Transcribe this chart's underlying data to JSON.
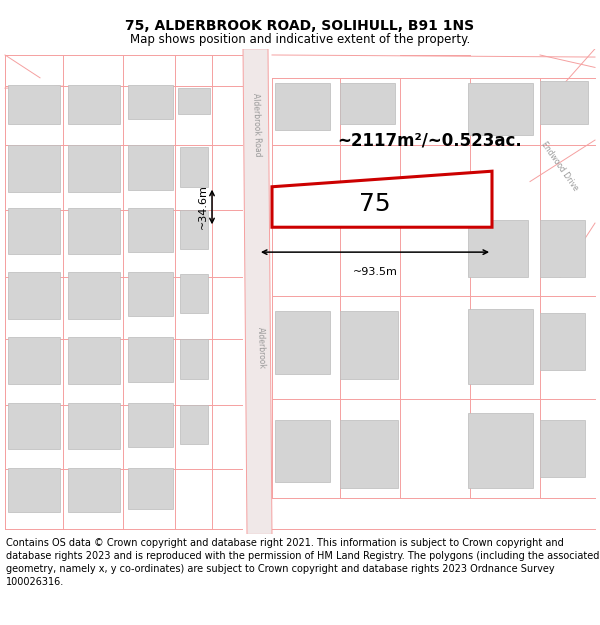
{
  "title": "75, ALDERBROOK ROAD, SOLIHULL, B91 1NS",
  "subtitle": "Map shows position and indicative extent of the property.",
  "footer": "Contains OS data © Crown copyright and database right 2021. This information is subject to Crown copyright and database rights 2023 and is reproduced with the permission of HM Land Registry. The polygons (including the associated geometry, namely x, y co-ordinates) are subject to Crown copyright and database rights 2023 Ordnance Survey 100026316.",
  "area_label": "~2117m²/~0.523ac.",
  "width_label": "~93.5m",
  "height_label": "~34.6m",
  "property_number": "75",
  "road_label_upper": "Alderbrook Road",
  "road_label_lower": "Alderbrook",
  "endwood_label": "Endwood Drive",
  "bg_color": "#ffffff",
  "map_bg": "#faf5f5",
  "building_fill": "#d4d4d4",
  "building_edge": "#bbbbbb",
  "road_fill": "#f5eded",
  "boundary_color": "#cc0000",
  "pink_line": "#f5a0a0",
  "title_fontsize": 10,
  "subtitle_fontsize": 8.5,
  "footer_fontsize": 7.0,
  "label_fontsize": 7.0,
  "area_fontsize": 12,
  "number_fontsize": 18,
  "dim_fontsize": 8
}
